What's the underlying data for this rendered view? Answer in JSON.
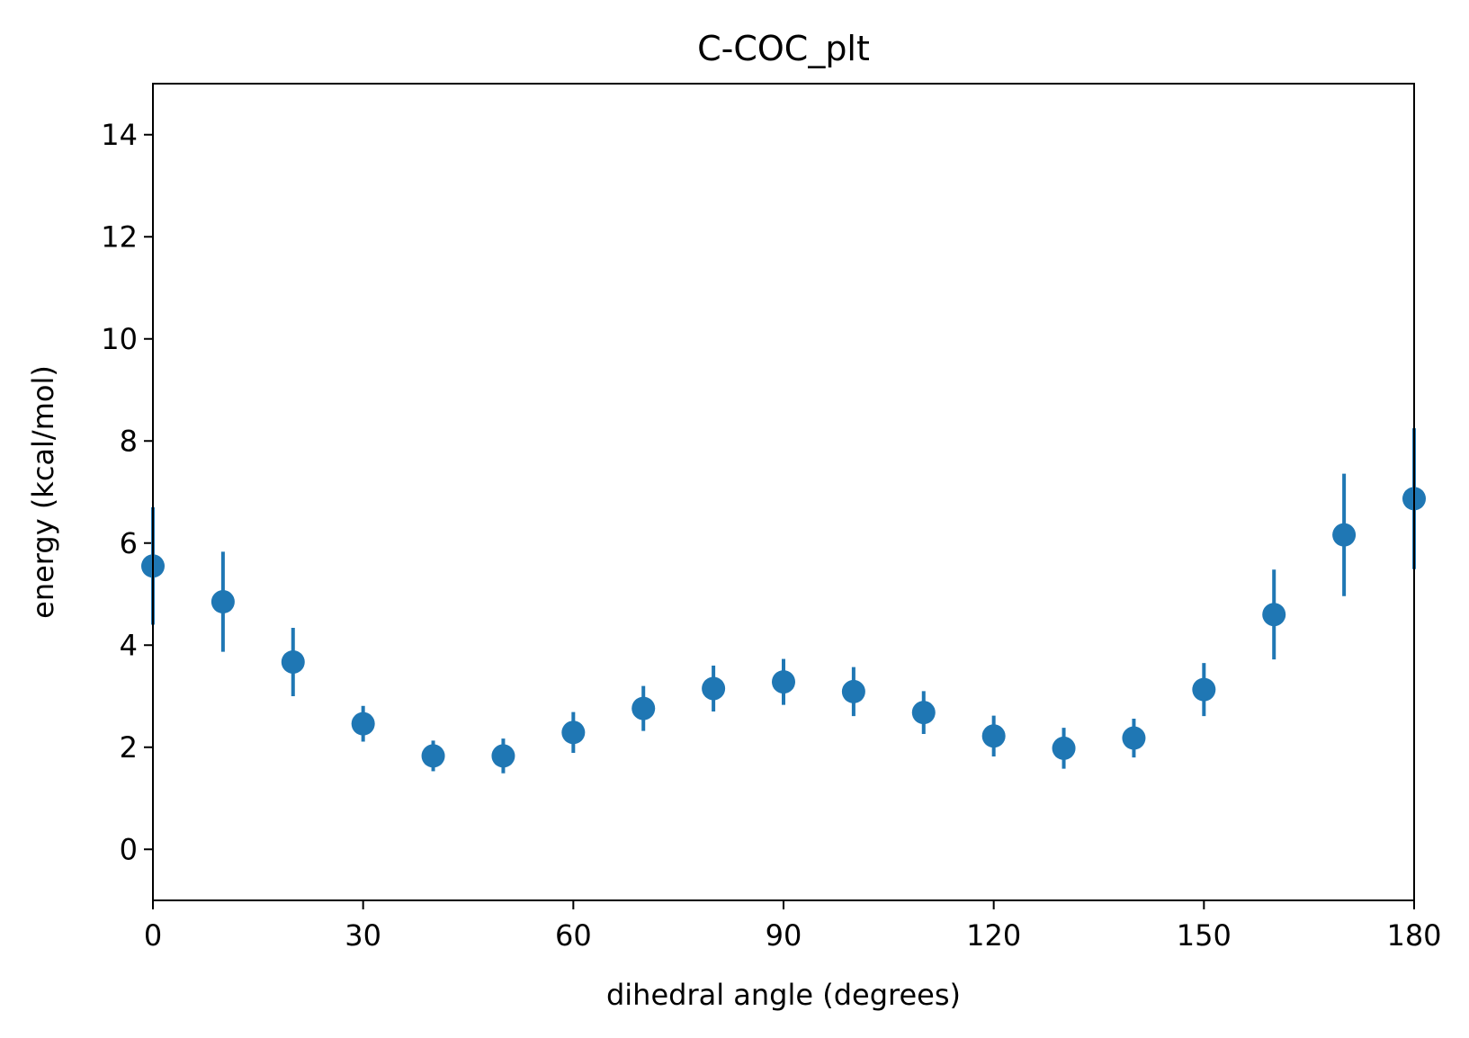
{
  "chart_data": {
    "type": "scatter",
    "title": "C-COC_plt",
    "xlabel": "dihedral angle (degrees)",
    "ylabel": "energy (kcal/mol)",
    "xlim": [
      0,
      180
    ],
    "ylim": [
      -1,
      15
    ],
    "xticks": [
      0,
      30,
      60,
      90,
      120,
      150,
      180
    ],
    "yticks": [
      0,
      2,
      4,
      6,
      8,
      10,
      12,
      14
    ],
    "grid": false,
    "color": "#1f77b4",
    "series": [
      {
        "x": [
          0,
          10,
          20,
          30,
          40,
          50,
          60,
          70,
          80,
          90,
          100,
          110,
          120,
          130,
          140,
          150,
          160,
          170,
          180
        ],
        "y": [
          5.55,
          4.85,
          3.67,
          2.46,
          1.83,
          1.83,
          2.29,
          2.76,
          3.15,
          3.28,
          3.09,
          2.68,
          2.22,
          1.98,
          2.18,
          3.13,
          4.6,
          6.16,
          6.87
        ],
        "err": [
          1.15,
          0.98,
          0.67,
          0.35,
          0.3,
          0.34,
          0.4,
          0.44,
          0.45,
          0.45,
          0.48,
          0.42,
          0.4,
          0.4,
          0.38,
          0.52,
          0.88,
          1.2,
          1.38
        ]
      }
    ]
  }
}
